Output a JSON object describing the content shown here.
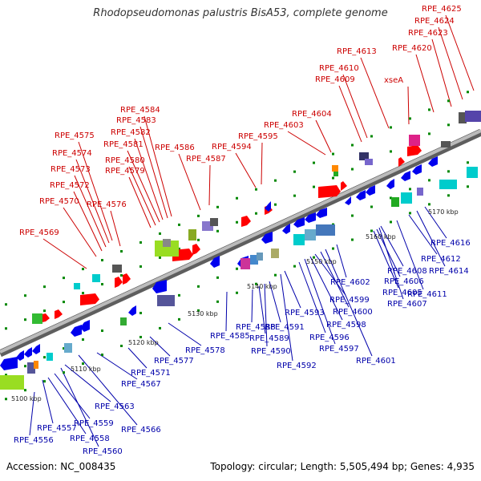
{
  "title": "Rhodopseudomonas palustris BisA53, complete genome",
  "footer": {
    "accession_label": "Accession:",
    "accession": "NC_008435",
    "topology_label": "Topology:",
    "topology": "circular",
    "length_label": "Length:",
    "length": "5,505,494 bp",
    "genes_label": "Genes:",
    "genes": "4,935"
  },
  "colors": {
    "forward_label": "#cc0000",
    "reverse_label": "#0000aa",
    "backbone": "#999999",
    "forward_gene": "#ff0000",
    "reverse_gene": "#0000ee",
    "tick": "#008800"
  },
  "ticks": [
    "5100 kbp",
    "5110 kbp",
    "5120 kbp",
    "5130 kbp",
    "5140 kbp",
    "5150 kbp",
    "5160 kbp",
    "5170 kbp"
  ],
  "top_labels": [
    "RPE_4569",
    "RPE_4570",
    "RPE_4572",
    "RPE_4573",
    "RPE_4574",
    "RPE_4575",
    "RPE_4576",
    "RPE_4579",
    "RPE_4580",
    "RPE_4581",
    "RPE_4582",
    "RPE_4583",
    "RPE_4584",
    "RPE_4586",
    "RPE_4587",
    "RPE_4594",
    "RPE_4595",
    "RPE_4603",
    "RPE_4604",
    "RPE_4609",
    "RPE_4610",
    "RPE_4613",
    "xseA",
    "RPE_4620",
    "RPE_4623",
    "RPE_4624",
    "RPE_4625"
  ],
  "bottom_labels": [
    "RPE_4556",
    "RPE_4557",
    "RPE_4558",
    "RPE_4559",
    "RPE_4560",
    "RPE_4563",
    "RPE_4566",
    "RPE_4567",
    "RPE_4571",
    "RPE_4577",
    "RPE_4578",
    "RPE_4585",
    "RPE_4588",
    "RPE_4589",
    "RPE_4590",
    "RPE_4591",
    "RPE_4592",
    "RPE_4593",
    "RPE_4596",
    "RPE_4597",
    "RPE_4598",
    "RPE_4599",
    "RPE_4600",
    "RPE_4601",
    "RPE_4602",
    "RPE_4605",
    "RPE_4606",
    "RPE_4607",
    "RPE_4608",
    "RPE_4611",
    "RPE_4612",
    "RPE_4614",
    "RPE_4616"
  ]
}
